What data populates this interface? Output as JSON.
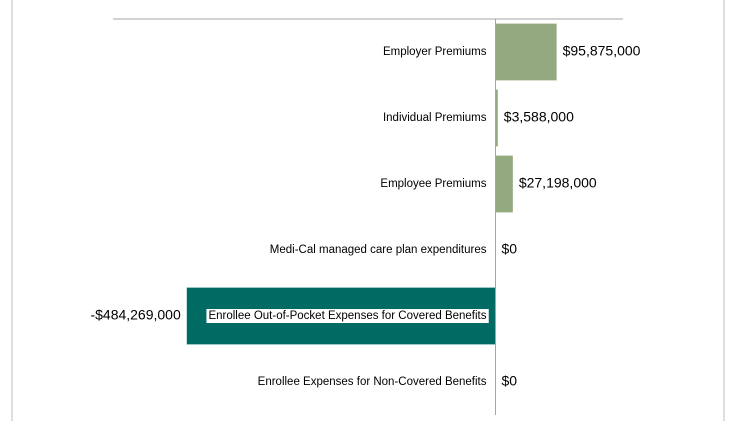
{
  "chart_data": {
    "type": "bar",
    "orientation": "horizontal",
    "categories": [
      "Employer Premiums",
      "Individual Premiums",
      "Employee Premiums",
      "Medi-Cal managed care plan expenditures",
      "Enrollee Out-of-Pocket Expenses for Covered Benefits",
      "Enrollee Expenses for Non-Covered Benefits"
    ],
    "values": [
      95875000,
      3588000,
      27198000,
      0,
      -484269000,
      0
    ],
    "value_labels": [
      "$95,875,000",
      "$3,588,000",
      "$27,198,000",
      "$0",
      "-$484,269,000",
      "$0"
    ],
    "colors": [
      "#93a97f",
      "#93a97f",
      "#93a97f",
      "#93a97f",
      "#006b63",
      "#93a97f"
    ],
    "xlim": [
      -600000000,
      200000000
    ]
  }
}
